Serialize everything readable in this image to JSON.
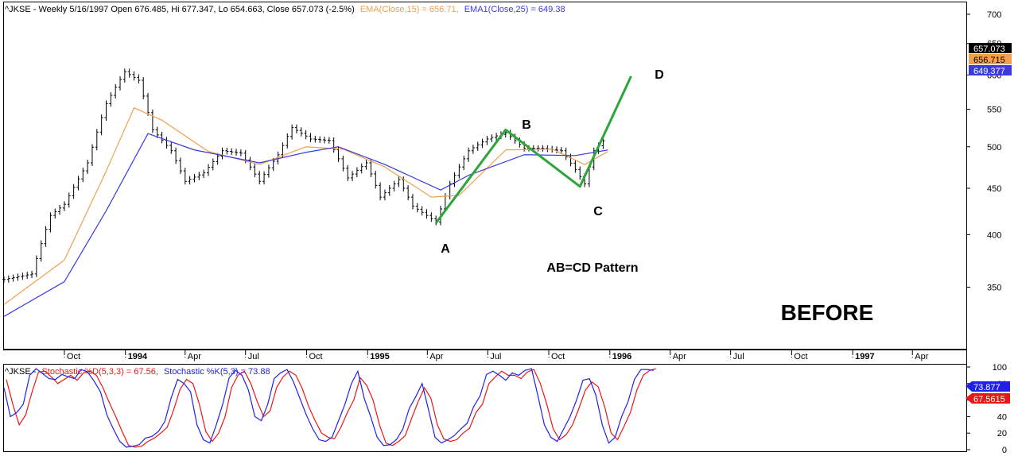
{
  "header": {
    "main_prefix": "^JKSE - Weekly 5/16/1997 Open 676.485, Hi 677.347, Lo 654.663, Close 657.073 (-2.5%)",
    "ema15_text": "EMA(Close,15) = 656.71,",
    "ema25_text": "EMA1(Close,25) = 649.38",
    "stoch_prefix": "^JKSE -",
    "stoch_d_text": "Stochastic %D(5,3,3) = 67.56,",
    "stoch_k_text": "Stochastic %K(5,3) = 73.88"
  },
  "colors": {
    "price": "#000000",
    "ema15": "#f0a050",
    "ema25": "#3a3ae0",
    "pattern": "#2aa63a",
    "stoch_d": "#e81818",
    "stoch_k": "#2020e8",
    "badge_close": "#000000",
    "badge_ema15": "#f0a050",
    "badge_ema25": "#3a3ae0"
  },
  "badges": {
    "close": "657.073",
    "ema15": "656.715",
    "ema25": "649.377",
    "stoch_k": "73.877",
    "stoch_d": "67.5615"
  },
  "annotations": {
    "A": "A",
    "B": "B",
    "C": "C",
    "D": "D",
    "pattern_label": "AB=CD Pattern",
    "before_label": "BEFORE"
  },
  "chart_data": [
    {
      "type": "line",
      "scale": "log",
      "ylim": [
        300,
        720
      ],
      "y_ticks": [
        350,
        400,
        450,
        500,
        550,
        600,
        650,
        700
      ],
      "x_tick_labels": [
        "Oct",
        "1994",
        "Apr",
        "Jul",
        "Oct",
        "1995",
        "Apr",
        "Jul",
        "Oct",
        "1996",
        "Apr",
        "Jul",
        "Oct",
        "1997",
        "Apr"
      ],
      "x_range": [
        "1993-07-02",
        "1997-06-20"
      ],
      "series": [
        {
          "name": "^JKSE",
          "style": "ohlc-weekly",
          "points": [
            [
              "1993-07-02",
              357
            ],
            [
              "1993-08-13",
              362
            ],
            [
              "1993-09-10",
              420
            ],
            [
              "1993-10-01",
              432
            ],
            [
              "1993-11-05",
              480
            ],
            [
              "1993-12-03",
              558
            ],
            [
              "1993-12-31",
              605
            ],
            [
              "1994-01-21",
              592
            ],
            [
              "1994-02-11",
              522
            ],
            [
              "1994-03-11",
              495
            ],
            [
              "1994-04-01",
              458
            ],
            [
              "1994-04-29",
              468
            ],
            [
              "1994-05-27",
              495
            ],
            [
              "1994-06-24",
              492
            ],
            [
              "1994-07-22",
              458
            ],
            [
              "1994-08-19",
              490
            ],
            [
              "1994-09-09",
              525
            ],
            [
              "1994-10-07",
              510
            ],
            [
              "1994-11-04",
              508
            ],
            [
              "1994-12-02",
              462
            ],
            [
              "1994-12-30",
              480
            ],
            [
              "1995-01-20",
              440
            ],
            [
              "1995-02-17",
              460
            ],
            [
              "1995-03-10",
              430
            ],
            [
              "1995-03-31",
              420
            ],
            [
              "1995-04-14",
              413
            ],
            [
              "1995-05-05",
              455
            ],
            [
              "1995-06-02",
              495
            ],
            [
              "1995-06-30",
              510
            ],
            [
              "1995-07-28",
              518
            ],
            [
              "1995-08-25",
              498
            ],
            [
              "1995-09-22",
              498
            ],
            [
              "1995-10-20",
              495
            ],
            [
              "1995-11-10",
              472
            ],
            [
              "1995-11-24",
              455
            ],
            [
              "1995-12-08",
              495
            ],
            [
              "1995-12-29",
              514
            ]
          ]
        },
        {
          "name": "EMA(Close,15)",
          "points": [
            [
              "1993-07-02",
              335
            ],
            [
              "1993-10-01",
              375
            ],
            [
              "1993-12-03",
              470
            ],
            [
              "1994-01-14",
              552
            ],
            [
              "1994-02-25",
              535
            ],
            [
              "1994-05-06",
              494
            ],
            [
              "1994-07-22",
              478
            ],
            [
              "1994-09-30",
              500
            ],
            [
              "1994-11-25",
              497
            ],
            [
              "1995-01-27",
              475
            ],
            [
              "1995-04-07",
              440
            ],
            [
              "1995-05-19",
              442
            ],
            [
              "1995-07-28",
              496
            ],
            [
              "1995-10-06",
              497
            ],
            [
              "1995-11-24",
              478
            ],
            [
              "1995-12-29",
              494
            ]
          ]
        },
        {
          "name": "EMA1(Close,25)",
          "points": [
            [
              "1993-07-02",
              325
            ],
            [
              "1993-10-01",
              355
            ],
            [
              "1993-12-03",
              425
            ],
            [
              "1994-02-04",
              517
            ],
            [
              "1994-04-15",
              496
            ],
            [
              "1994-07-22",
              480
            ],
            [
              "1994-09-30",
              493
            ],
            [
              "1994-11-18",
              500
            ],
            [
              "1995-01-27",
              478
            ],
            [
              "1995-04-21",
              448
            ],
            [
              "1995-06-02",
              465
            ],
            [
              "1995-08-25",
              490
            ],
            [
              "1995-11-10",
              489
            ],
            [
              "1995-12-29",
              496
            ]
          ]
        },
        {
          "name": "AB=CD Pattern",
          "points": [
            [
              "1995-04-14",
              412
            ],
            [
              "1995-07-28",
              522
            ],
            [
              "1995-11-17",
              452
            ],
            [
              "1996-02-02",
              598
            ]
          ]
        }
      ]
    },
    {
      "type": "line",
      "ylim": [
        0,
        100
      ],
      "y_ticks": [
        0,
        20,
        40,
        60,
        80,
        100
      ],
      "series": [
        {
          "name": "Stochastic %D(5,3,3)",
          "values": [
            85,
            55,
            30,
            42,
            70,
            94,
            95,
            88,
            80,
            85,
            90,
            84,
            93,
            95,
            90,
            75,
            57,
            40,
            22,
            5,
            3,
            4,
            10,
            14,
            20,
            27,
            48,
            73,
            85,
            80,
            55,
            22,
            10,
            20,
            40,
            75,
            90,
            95,
            80,
            58,
            40,
            47,
            75,
            88,
            95,
            90,
            74,
            52,
            35,
            20,
            15,
            13,
            27,
            45,
            60,
            87,
            78,
            60,
            30,
            8,
            5,
            10,
            17,
            38,
            58,
            75,
            62,
            30,
            13,
            10,
            12,
            20,
            26,
            45,
            55,
            80,
            88,
            95,
            90,
            90,
            86,
            94,
            97,
            80,
            55,
            25,
            12,
            18,
            30,
            50,
            72,
            82,
            76,
            52,
            20,
            12,
            28,
            45,
            72,
            90,
            96,
            98
          ]
        },
        {
          "name": "Stochastic %K(5,3)",
          "values": [
            75,
            40,
            45,
            55,
            90,
            98,
            92,
            86,
            85,
            91,
            88,
            86,
            97,
            94,
            83,
            70,
            42,
            25,
            10,
            3,
            4,
            6,
            14,
            16,
            22,
            34,
            63,
            85,
            80,
            70,
            30,
            12,
            8,
            30,
            55,
            87,
            96,
            90,
            72,
            40,
            35,
            55,
            86,
            93,
            97,
            82,
            62,
            42,
            25,
            12,
            10,
            15,
            35,
            55,
            80,
            95,
            62,
            40,
            15,
            5,
            6,
            12,
            25,
            50,
            64,
            80,
            48,
            15,
            8,
            12,
            17,
            25,
            32,
            52,
            65,
            91,
            95,
            90,
            84,
            93,
            90,
            96,
            98,
            65,
            30,
            15,
            10,
            25,
            40,
            60,
            84,
            86,
            66,
            30,
            8,
            15,
            40,
            58,
            85,
            97,
            97,
            96
          ]
        }
      ]
    }
  ]
}
